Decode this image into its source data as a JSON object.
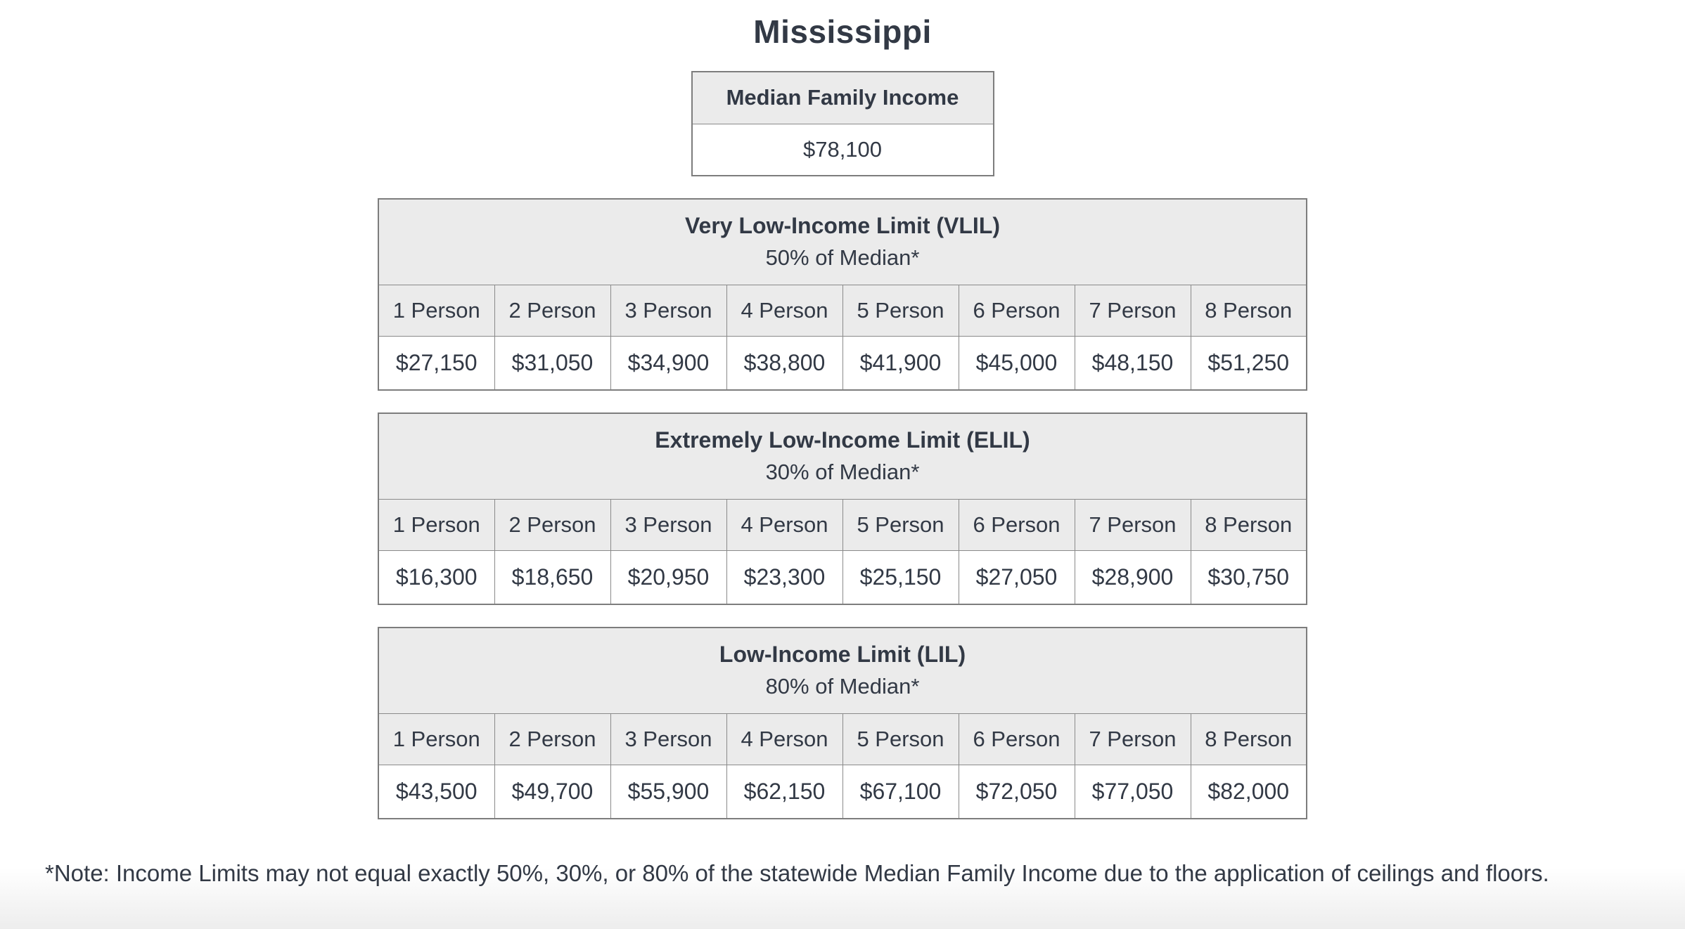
{
  "page": {
    "title": "Mississippi",
    "note": "*Note: Income Limits may not equal exactly 50%, 30%, or 80% of the statewide Median Family Income due to the application of ceilings and floors."
  },
  "median_income": {
    "header": "Median Family Income",
    "value": "$78,100"
  },
  "person_headers": [
    "1 Person",
    "2 Person",
    "3 Person",
    "4 Person",
    "5 Person",
    "6 Person",
    "7 Person",
    "8 Person"
  ],
  "income_tables": [
    {
      "id": "vlil",
      "title": "Very Low-Income Limit (VLIL)",
      "subtitle": "50% of Median*",
      "values": [
        "$27,150",
        "$31,050",
        "$34,900",
        "$38,800",
        "$41,900",
        "$45,000",
        "$48,150",
        "$51,250"
      ]
    },
    {
      "id": "elil",
      "title": "Extremely Low-Income Limit (ELIL)",
      "subtitle": "30% of Median*",
      "values": [
        "$16,300",
        "$18,650",
        "$20,950",
        "$23,300",
        "$25,150",
        "$27,050",
        "$28,900",
        "$30,750"
      ]
    },
    {
      "id": "lil",
      "title": "Low-Income Limit (LIL)",
      "subtitle": "80% of Median*",
      "values": [
        "$43,500",
        "$49,700",
        "$55,900",
        "$62,150",
        "$67,100",
        "$72,050",
        "$77,050",
        "$82,000"
      ]
    }
  ],
  "colors": {
    "text": "#323945",
    "header_bg": "#ebebeb",
    "border": "#7d7d7d"
  }
}
